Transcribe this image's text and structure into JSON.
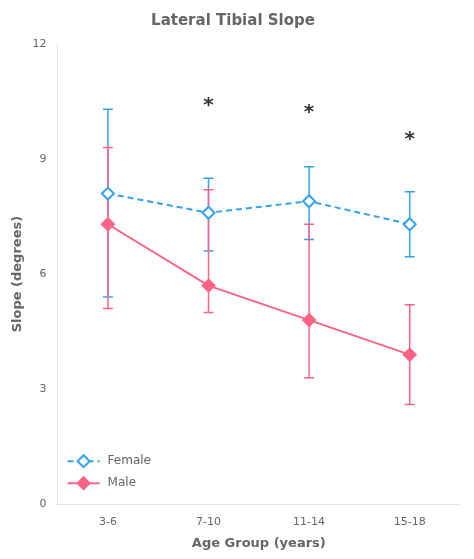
{
  "chart_data": {
    "type": "line",
    "title": "Lateral Tibial Slope",
    "x_label": "Age Group (years)",
    "y_label": "Slope (degrees)",
    "categories": [
      "3-6",
      "7-10",
      "11-14",
      "15-18"
    ],
    "series": [
      {
        "name": "Female",
        "values": [
          8.1,
          7.6,
          7.9,
          7.3
        ],
        "error_upper": [
          2.2,
          0.9,
          0.9,
          0.85
        ],
        "error_lower": [
          2.7,
          1.0,
          1.0,
          0.85
        ],
        "line_style": "dashed",
        "marker": "open_diamond"
      },
      {
        "name": "Male",
        "values": [
          7.3,
          5.7,
          4.8,
          3.9
        ],
        "error_upper": [
          2.0,
          2.5,
          2.5,
          1.3
        ],
        "error_lower": [
          2.2,
          0.7,
          1.5,
          1.3
        ],
        "line_style": "solid",
        "marker": "diamond"
      }
    ],
    "annotations": [
      {
        "text": "*",
        "x": "7-10",
        "y": 10.4
      },
      {
        "text": "*",
        "x": "11-14",
        "y": 10.2
      },
      {
        "text": "*",
        "x": "15-18",
        "y": 9.5
      }
    ],
    "ylim": [
      0,
      12
    ],
    "yticks": [
      0,
      3,
      6,
      9,
      12
    ],
    "grid": false,
    "legend": "lower left"
  }
}
